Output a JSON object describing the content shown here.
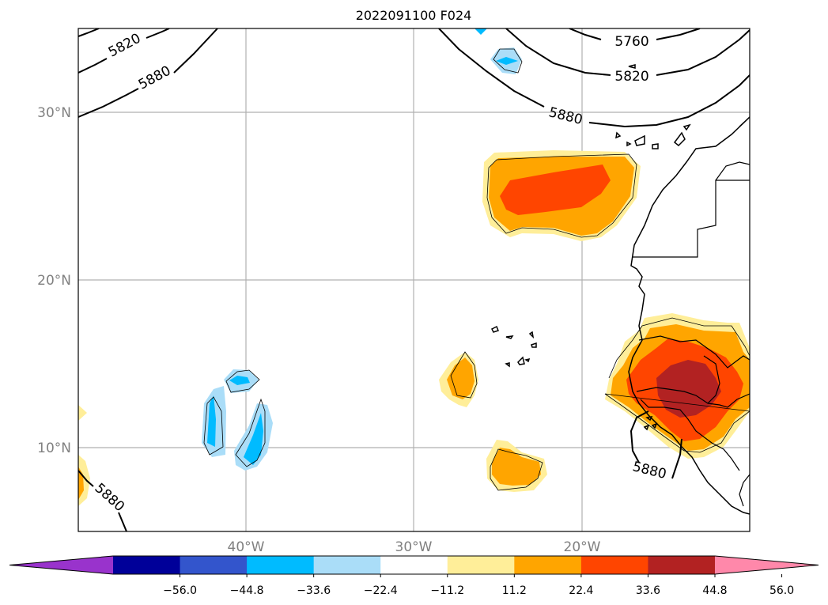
{
  "title": "2022091100 F024",
  "map": {
    "lon_range": [
      -50,
      -10
    ],
    "lat_range": [
      5,
      35
    ],
    "lon_gridlines": [
      -40,
      -30,
      -20
    ],
    "lat_gridlines": [
      10,
      20,
      30
    ],
    "lon_labels": [
      "40°W",
      "30°W",
      "20°W"
    ],
    "lat_labels": [
      "10°N",
      "20°N",
      "30°N"
    ],
    "grid": true,
    "height_contour_labels": [
      "5820",
      "5880",
      "5760",
      "5820",
      "5880",
      "5880",
      "5880"
    ]
  },
  "colorbar": {
    "extend": "both",
    "colors": [
      "#9933cc",
      "#000099",
      "#3355cc",
      "#00bbff",
      "#aaddf8",
      "#ffffff",
      "#ffee99",
      "#ffa500",
      "#ff4500",
      "#b22222",
      "#ff88aa"
    ],
    "tick_labels": [
      "−56.0",
      "−44.8",
      "−33.6",
      "−22.4",
      "−11.2",
      "11.2",
      "22.4",
      "33.6",
      "44.8",
      "56.0"
    ]
  },
  "colors": {
    "grid": "#b0b0b0",
    "axis_label": "#808080"
  }
}
